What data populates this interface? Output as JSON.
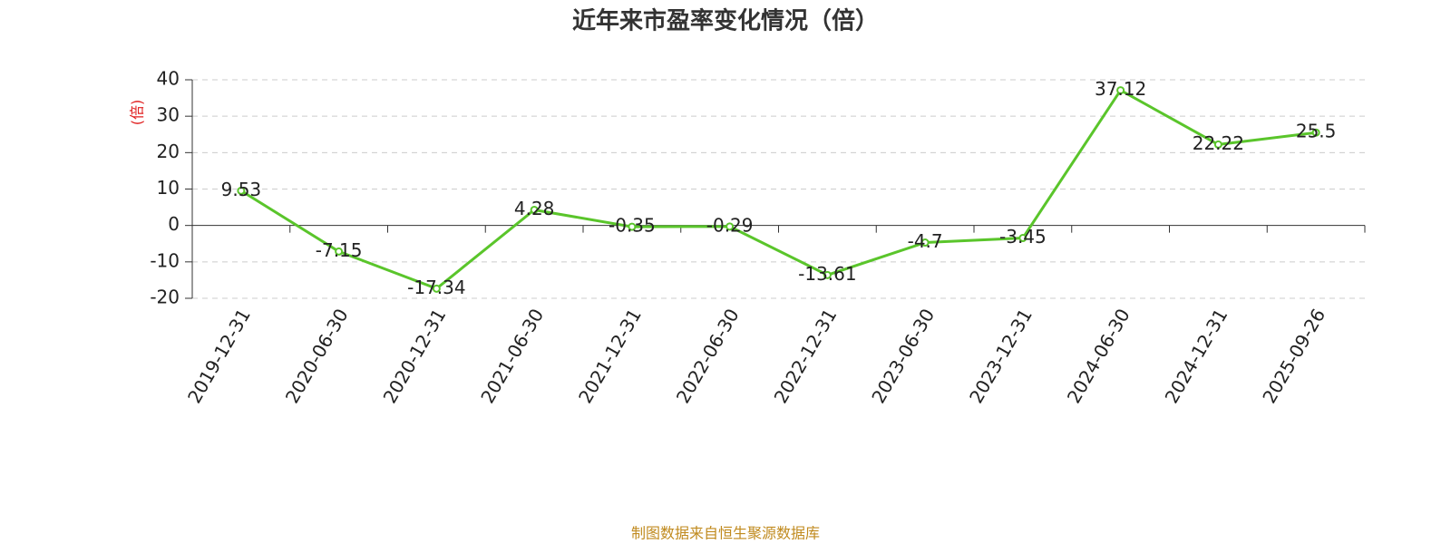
{
  "chart_data": {
    "type": "line",
    "title": "近年来市盈率变化情况（倍）",
    "y_label": "(倍)",
    "source": "制图数据来自恒生聚源数据库",
    "categories": [
      "2019-12-31",
      "2020-06-30",
      "2020-12-31",
      "2021-06-30",
      "2021-12-31",
      "2022-06-30",
      "2022-12-31",
      "2023-06-30",
      "2023-12-31",
      "2024-06-30",
      "2024-12-31",
      "2025-09-26"
    ],
    "series": [
      {
        "name": "市盈率",
        "color": "#5ac52b",
        "values": [
          9.53,
          -7.15,
          -17.34,
          4.28,
          -0.35,
          -0.29,
          -13.61,
          -4.7,
          -3.45,
          37.12,
          22.22,
          25.5
        ]
      }
    ],
    "ylim": [
      -20,
      40
    ],
    "yticks": [
      -20,
      -10,
      0,
      10,
      20,
      30,
      40
    ],
    "grid": true
  }
}
